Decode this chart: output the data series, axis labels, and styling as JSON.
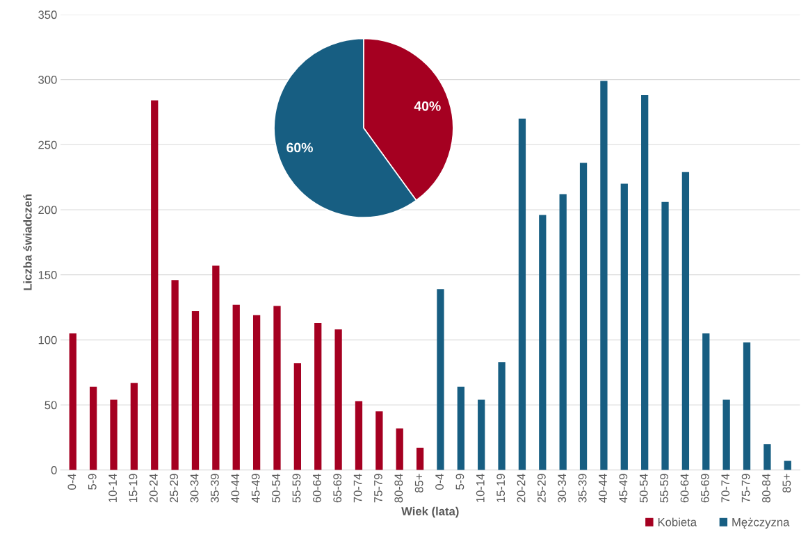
{
  "chart_data": [
    {
      "type": "bar",
      "xlabel": "Wiek (lata)",
      "ylabel": "Liczba świadczeń",
      "categories": [
        "0-4",
        "5-9",
        "10-14",
        "15-19",
        "20-24",
        "25-29",
        "30-34",
        "35-39",
        "40-44",
        "45-49",
        "50-54",
        "55-59",
        "60-64",
        "65-69",
        "70-74",
        "75-79",
        "80-84",
        "85+",
        "0-4",
        "5-9",
        "10-14",
        "15-19",
        "20-24",
        "25-29",
        "30-34",
        "35-39",
        "40-44",
        "45-49",
        "50-54",
        "55-59",
        "60-64",
        "65-69",
        "70-74",
        "75-79",
        "80-84",
        "85+"
      ],
      "series": [
        {
          "name": "Kobieta",
          "color": "#a50021",
          "values": [
            105,
            64,
            54,
            67,
            284,
            146,
            122,
            157,
            127,
            119,
            126,
            82,
            113,
            108,
            53,
            45,
            32,
            17,
            null,
            null,
            null,
            null,
            null,
            null,
            null,
            null,
            null,
            null,
            null,
            null,
            null,
            null,
            null,
            null,
            null,
            null
          ]
        },
        {
          "name": "Mężczyzna",
          "color": "#175e82",
          "values": [
            null,
            null,
            null,
            null,
            null,
            null,
            null,
            null,
            null,
            null,
            null,
            null,
            null,
            null,
            null,
            null,
            null,
            null,
            139,
            64,
            54,
            83,
            270,
            196,
            212,
            236,
            299,
            220,
            288,
            206,
            229,
            105,
            54,
            98,
            20,
            7
          ]
        }
      ],
      "ylim": [
        0,
        350
      ],
      "yticks": [
        0,
        50,
        100,
        150,
        200,
        250,
        300,
        350
      ],
      "grid": "y",
      "legend": "bottom right"
    },
    {
      "type": "pie",
      "categories": [
        null,
        null
      ],
      "values": [
        40,
        60
      ],
      "colors": [
        "#a50021",
        "#175e82"
      ],
      "value_labels": [
        "40%",
        "60%"
      ]
    }
  ]
}
